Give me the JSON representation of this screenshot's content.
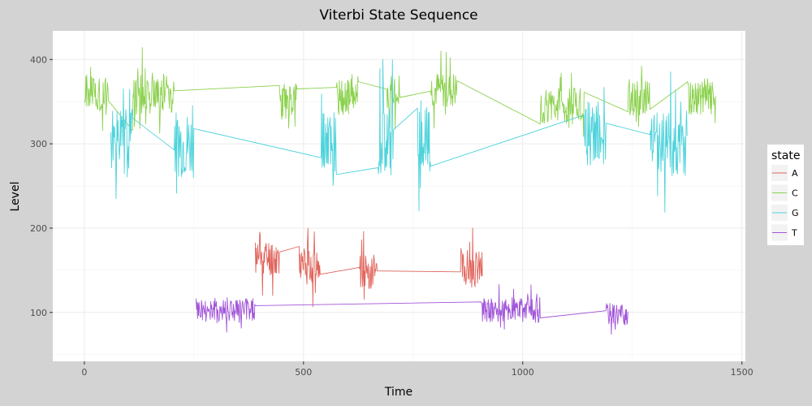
{
  "chart_data": {
    "type": "line",
    "title": "Viterbi State Sequence",
    "xlabel": "Time",
    "ylabel": "Level",
    "xlim": [
      -72,
      1508
    ],
    "ylim": [
      42,
      434
    ],
    "x_ticks": [
      0,
      500,
      1000,
      1500
    ],
    "y_ticks": [
      100,
      200,
      300,
      400
    ],
    "grid": true,
    "legend": {
      "title": "state",
      "position": "right"
    },
    "series": [
      {
        "name": "A",
        "color": "#E0645B",
        "segments": [
          {
            "x": [
              390,
              445
            ],
            "level": 165,
            "amp": 22,
            "seed": 11
          },
          {
            "x": [
              490,
              538
            ],
            "level": 155,
            "amp": 22,
            "seed": 12
          },
          {
            "x": [
              627,
              668
            ],
            "level": 150,
            "amp": 22,
            "seed": 13
          },
          {
            "x": [
              858,
              908
            ],
            "level": 152,
            "amp": 22,
            "seed": 14
          }
        ]
      },
      {
        "name": "C",
        "color": "#8CD14E",
        "segments": [
          {
            "x": [
              0,
              55
            ],
            "level": 360,
            "amp": 22,
            "seed": 21
          },
          {
            "x": [
              110,
              205
            ],
            "level": 360,
            "amp": 25,
            "seed": 22
          },
          {
            "x": [
              445,
              485
            ],
            "level": 350,
            "amp": 22,
            "seed": 23
          },
          {
            "x": [
              575,
              625
            ],
            "level": 355,
            "amp": 22,
            "seed": 24
          },
          {
            "x": [
              690,
              720
            ],
            "level": 360,
            "amp": 22,
            "seed": 25
          },
          {
            "x": [
              790,
              850
            ],
            "level": 365,
            "amp": 22,
            "seed": 26
          },
          {
            "x": [
              1040,
              1140
            ],
            "level": 345,
            "amp": 22,
            "seed": 27
          },
          {
            "x": [
              1240,
              1290
            ],
            "level": 355,
            "amp": 22,
            "seed": 28
          },
          {
            "x": [
              1375,
              1440
            ],
            "level": 355,
            "amp": 20,
            "seed": 29
          }
        ]
      },
      {
        "name": "G",
        "color": "#4ED3DB",
        "segments": [
          {
            "x": [
              60,
              110
            ],
            "level": 305,
            "amp": 35,
            "seed": 31
          },
          {
            "x": [
              205,
              250
            ],
            "level": 300,
            "amp": 40,
            "seed": 32
          },
          {
            "x": [
              540,
              575
            ],
            "level": 300,
            "amp": 40,
            "seed": 33
          },
          {
            "x": [
              670,
              705
            ],
            "level": 305,
            "amp": 45,
            "seed": 34
          },
          {
            "x": [
              760,
              790
            ],
            "level": 305,
            "amp": 40,
            "seed": 35
          },
          {
            "x": [
              1140,
              1190
            ],
            "level": 310,
            "amp": 40,
            "seed": 36
          },
          {
            "x": [
              1290,
              1375
            ],
            "level": 300,
            "amp": 40,
            "seed": 37
          }
        ]
      },
      {
        "name": "T",
        "color": "#A154D9",
        "segments": [
          {
            "x": [
              255,
              390
            ],
            "level": 102,
            "amp": 15,
            "seed": 41
          },
          {
            "x": [
              905,
              1040
            ],
            "level": 103,
            "amp": 15,
            "seed": 42
          },
          {
            "x": [
              1190,
              1240
            ],
            "level": 98,
            "amp": 13,
            "seed": 43
          }
        ]
      }
    ]
  }
}
